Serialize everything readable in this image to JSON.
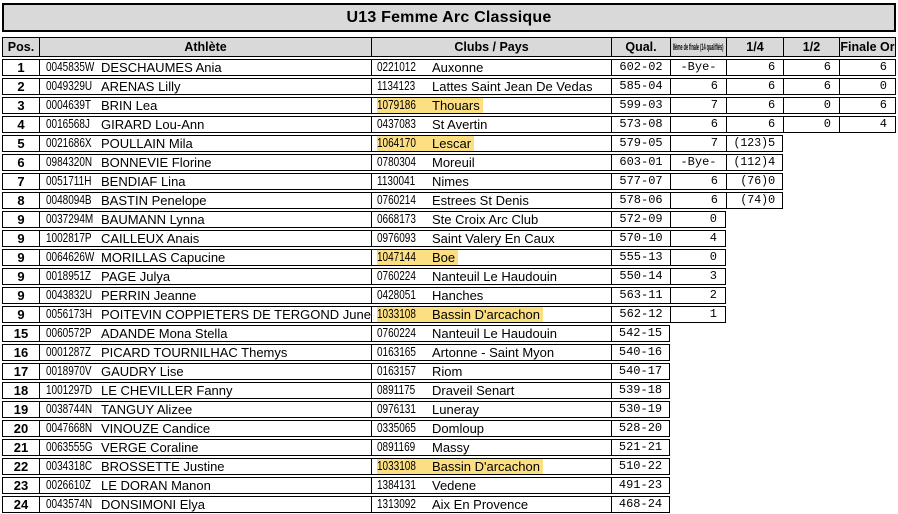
{
  "title": "U13 Femme Arc Classique",
  "header": {
    "pos": "Pos.",
    "athlete": "Athlète",
    "clubs": "Clubs / Pays",
    "qual": "Qual.",
    "r16": "8ème de finale (14 qualifiés)",
    "quarter": "1/4",
    "semi": "1/2",
    "final": "Finale Or"
  },
  "colors": {
    "header_bg": "#d9d9d9",
    "highlight": "#fbdf82",
    "border": "#000000"
  },
  "rows": [
    {
      "pos": "1",
      "license": "0045835W",
      "name": "DESCHAUMES Ania",
      "club_code": "0221012",
      "club": "Auxonne",
      "club_highlight": false,
      "qual": "602-02",
      "r16": "-Bye-",
      "quarter_note": "",
      "quarter": "6",
      "semi": "6",
      "final": "6"
    },
    {
      "pos": "2",
      "license": "0049329U",
      "name": "ARENAS Lilly",
      "club_code": "1134123",
      "club": "Lattes Saint Jean De Vedas",
      "club_highlight": false,
      "qual": "585-04",
      "r16": "6",
      "quarter_note": "",
      "quarter": "6",
      "semi": "6",
      "final": "0"
    },
    {
      "pos": "3",
      "license": "0004639T",
      "name": "BRIN Lea",
      "club_code": "1079186",
      "club": "Thouars",
      "club_highlight": true,
      "qual": "599-03",
      "r16": "7",
      "quarter_note": "",
      "quarter": "6",
      "semi": "0",
      "final": "6"
    },
    {
      "pos": "4",
      "license": "0016568J",
      "name": "GIRARD Lou-Ann",
      "club_code": "0437083",
      "club": "St Avertin",
      "club_highlight": false,
      "qual": "573-08",
      "r16": "6",
      "quarter_note": "",
      "quarter": "6",
      "semi": "0",
      "final": "4"
    },
    {
      "pos": "5",
      "license": "0021686X",
      "name": "POULLAIN Mila",
      "club_code": "1064170",
      "club": "Lescar",
      "club_highlight": true,
      "qual": "579-05",
      "r16": "7",
      "quarter_note": "(123)",
      "quarter": "5"
    },
    {
      "pos": "6",
      "license": "0984320N",
      "name": "BONNEVIE Florine",
      "club_code": "0780304",
      "club": "Moreuil",
      "club_highlight": false,
      "qual": "603-01",
      "r16": "-Bye-",
      "quarter_note": "(112)",
      "quarter": "4"
    },
    {
      "pos": "7",
      "license": "0051711H",
      "name": "BENDIAF Lina",
      "club_code": "1130041",
      "club": "Nimes",
      "club_highlight": false,
      "qual": "577-07",
      "r16": "6",
      "quarter_note": "(76)",
      "quarter": "0"
    },
    {
      "pos": "8",
      "license": "0048094B",
      "name": "BASTIN Penelope",
      "club_code": "0760214",
      "club": "Estrees St Denis",
      "club_highlight": false,
      "qual": "578-06",
      "r16": "6",
      "quarter_note": "(74)",
      "quarter": "0"
    },
    {
      "pos": "9",
      "license": "0037294M",
      "name": "BAUMANN Lynna",
      "club_code": "0668173",
      "club": "Ste Croix Arc Club",
      "club_highlight": false,
      "qual": "572-09",
      "r16": "0"
    },
    {
      "pos": "9",
      "license": "1002817P",
      "name": "CAILLEUX Anais",
      "club_code": "0976093",
      "club": "Saint Valery En Caux",
      "club_highlight": false,
      "qual": "570-10",
      "r16": "4"
    },
    {
      "pos": "9",
      "license": "0064626W",
      "name": "MORILLAS Capucine",
      "club_code": "1047144",
      "club": "Boe",
      "club_highlight": true,
      "qual": "555-13",
      "r16": "0"
    },
    {
      "pos": "9",
      "license": "0018951Z",
      "name": "PAGE Julya",
      "club_code": "0760224",
      "club": "Nanteuil Le Haudouin",
      "club_highlight": false,
      "qual": "550-14",
      "r16": "3"
    },
    {
      "pos": "9",
      "license": "0043832U",
      "name": "PERRIN Jeanne",
      "club_code": "0428051",
      "club": "Hanches",
      "club_highlight": false,
      "qual": "563-11",
      "r16": "2"
    },
    {
      "pos": "9",
      "license": "0056173H",
      "name": "POITEVIN COPPIETERS DE TERGOND June",
      "club_code": "1033108",
      "club": "Bassin D'arcachon",
      "club_highlight": true,
      "qual": "562-12",
      "r16": "1"
    },
    {
      "pos": "15",
      "license": "0060572P",
      "name": "ADANDE Mona Stella",
      "club_code": "0760224",
      "club": "Nanteuil Le Haudouin",
      "club_highlight": false,
      "qual": "542-15"
    },
    {
      "pos": "16",
      "license": "0001287Z",
      "name": "PICARD TOURNILHAC Themys",
      "club_code": "0163165",
      "club": "Artonne - Saint Myon",
      "club_highlight": false,
      "qual": "540-16"
    },
    {
      "pos": "17",
      "license": "0018970V",
      "name": "GAUDRY Lise",
      "club_code": "0163157",
      "club": "Riom",
      "club_highlight": false,
      "qual": "540-17"
    },
    {
      "pos": "18",
      "license": "1001297D",
      "name": "LE CHEVILLER Fanny",
      "club_code": "0891175",
      "club": "Draveil Senart",
      "club_highlight": false,
      "qual": "539-18"
    },
    {
      "pos": "19",
      "license": "0038744N",
      "name": "TANGUY Alizee",
      "club_code": "0976131",
      "club": "Luneray",
      "club_highlight": false,
      "qual": "530-19"
    },
    {
      "pos": "20",
      "license": "0047668N",
      "name": "VINOUZE Candice",
      "club_code": "0335065",
      "club": "Domloup",
      "club_highlight": false,
      "qual": "528-20"
    },
    {
      "pos": "21",
      "license": "0063555G",
      "name": "VERGE Coraline",
      "club_code": "0891169",
      "club": "Massy",
      "club_highlight": false,
      "qual": "521-21"
    },
    {
      "pos": "22",
      "license": "0034318C",
      "name": "BROSSETTE Justine",
      "club_code": "1033108",
      "club": "Bassin D'arcachon",
      "club_highlight": true,
      "qual": "510-22"
    },
    {
      "pos": "23",
      "license": "0026610Z",
      "name": "LE DORAN Manon",
      "club_code": "1384131",
      "club": "Vedene",
      "club_highlight": false,
      "qual": "491-23"
    },
    {
      "pos": "24",
      "license": "0043574N",
      "name": "DONSIMONI Elya",
      "club_code": "1313092",
      "club": "Aix En Provence",
      "club_highlight": false,
      "qual": "468-24"
    }
  ]
}
